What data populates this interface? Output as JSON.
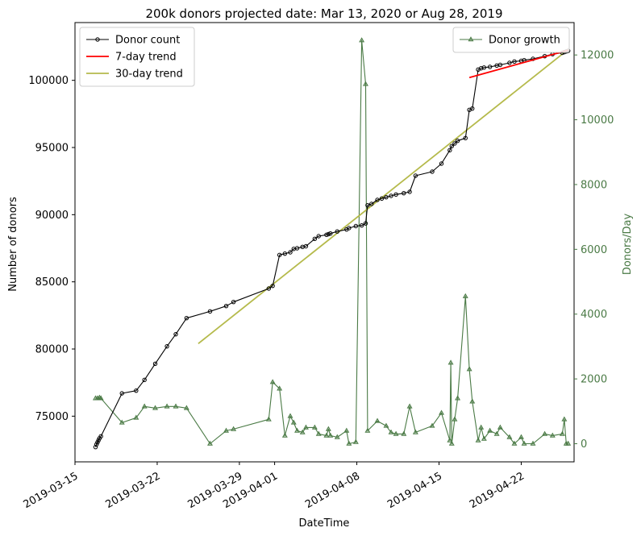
{
  "chart_data": {
    "type": "line",
    "title": "200k donors projected date: Mar 13, 2020 or Aug 28, 2019",
    "xlabel": "DateTime",
    "ylabel": "Number of donors",
    "y2label": "Donors/Day",
    "xlim": [
      "2019-03-15",
      "2019-04-26T12:00"
    ],
    "ylim": [
      71600,
      104300
    ],
    "y2lim": [
      -560,
      13000
    ],
    "x_ticks": [
      "2019-03-15",
      "2019-03-22",
      "2019-03-29",
      "2019-04-01",
      "2019-04-08",
      "2019-04-15",
      "2019-04-22"
    ],
    "y_ticks": [
      75000,
      80000,
      85000,
      90000,
      95000,
      100000
    ],
    "y2_ticks": [
      0,
      2000,
      4000,
      6000,
      8000,
      10000,
      12000
    ],
    "colors": {
      "donor_count": "#000000",
      "trend7": "#ff0000",
      "trend30": "#b5ba4b",
      "growth": "#4a7a45",
      "right_axis": "#4a7a45"
    },
    "legend_left": {
      "placement": "top-left",
      "items": [
        {
          "label": "Donor count",
          "series": "donor_count"
        },
        {
          "label": "7-day trend",
          "series": "trend7"
        },
        {
          "label": "30-day trend",
          "series": "trend30"
        }
      ]
    },
    "legend_right": {
      "placement": "top-right",
      "items": [
        {
          "label": "Donor growth",
          "series": "growth"
        }
      ]
    },
    "series": [
      {
        "name": "Donor count",
        "key": "donor_count",
        "axis": "left",
        "marker": "circle",
        "points": [
          [
            "2019-03-16T18:00",
            72700
          ],
          [
            "2019-03-16T20:00",
            72900
          ],
          [
            "2019-03-16T22:00",
            73050
          ],
          [
            "2019-03-17T00:00",
            73200
          ],
          [
            "2019-03-17T02:00",
            73350
          ],
          [
            "2019-03-17T05:00",
            73500
          ],
          [
            "2019-03-19T00:00",
            76700
          ],
          [
            "2019-03-20T05:00",
            76900
          ],
          [
            "2019-03-20T22:00",
            77700
          ],
          [
            "2019-03-21T20:00",
            78900
          ],
          [
            "2019-03-22T20:00",
            80200
          ],
          [
            "2019-03-23T14:00",
            81100
          ],
          [
            "2019-03-24T12:00",
            82300
          ],
          [
            "2019-03-26T12:00",
            82800
          ],
          [
            "2019-03-27T21:00",
            83200
          ],
          [
            "2019-03-28T12:00",
            83500
          ],
          [
            "2019-03-31T12:00",
            84500
          ],
          [
            "2019-03-31T20:00",
            84700
          ],
          [
            "2019-04-01T10:00",
            87000
          ],
          [
            "2019-04-01T21:00",
            87100
          ],
          [
            "2019-04-02T08:00",
            87200
          ],
          [
            "2019-04-02T15:00",
            87450
          ],
          [
            "2019-04-02T22:00",
            87500
          ],
          [
            "2019-04-03T09:00",
            87600
          ],
          [
            "2019-04-03T16:00",
            87650
          ],
          [
            "2019-04-04T10:00",
            88200
          ],
          [
            "2019-04-04T18:00",
            88400
          ],
          [
            "2019-04-05T10:00",
            88500
          ],
          [
            "2019-04-05T14:00",
            88550
          ],
          [
            "2019-04-05T18:00",
            88600
          ],
          [
            "2019-04-06T08:00",
            88750
          ],
          [
            "2019-04-07T03:00",
            88900
          ],
          [
            "2019-04-07T08:00",
            89000
          ],
          [
            "2019-04-07T22:00",
            89150
          ],
          [
            "2019-04-08T10:00",
            89200
          ],
          [
            "2019-04-08T18:00",
            89350
          ],
          [
            "2019-04-08T22:00",
            90700
          ],
          [
            "2019-04-09T06:00",
            90800
          ],
          [
            "2019-04-09T18:00",
            91100
          ],
          [
            "2019-04-10T03:00",
            91200
          ],
          [
            "2019-04-10T12:00",
            91300
          ],
          [
            "2019-04-10T22:00",
            91400
          ],
          [
            "2019-04-11T08:00",
            91500
          ],
          [
            "2019-04-12T00:00",
            91600
          ],
          [
            "2019-04-12T12:00",
            91700
          ],
          [
            "2019-04-13T00:00",
            92900
          ],
          [
            "2019-04-14T10:00",
            93200
          ],
          [
            "2019-04-15T05:00",
            93800
          ],
          [
            "2019-04-15T22:00",
            94800
          ],
          [
            "2019-04-16T02:00",
            95100
          ],
          [
            "2019-04-16T08:00",
            95300
          ],
          [
            "2019-04-16T14:00",
            95500
          ],
          [
            "2019-04-17T06:00",
            95700
          ],
          [
            "2019-04-17T14:00",
            97800
          ],
          [
            "2019-04-17T20:00",
            97900
          ],
          [
            "2019-04-18T08:00",
            100800
          ],
          [
            "2019-04-18T14:00",
            100900
          ],
          [
            "2019-04-18T20:00",
            100950
          ],
          [
            "2019-04-19T08:00",
            101000
          ],
          [
            "2019-04-19T22:00",
            101100
          ],
          [
            "2019-04-20T05:00",
            101150
          ],
          [
            "2019-04-21T00:00",
            101300
          ],
          [
            "2019-04-21T10:00",
            101400
          ],
          [
            "2019-04-22T00:00",
            101450
          ],
          [
            "2019-04-22T06:00",
            101500
          ],
          [
            "2019-04-23T00:00",
            101600
          ],
          [
            "2019-04-24T00:00",
            101800
          ],
          [
            "2019-04-24T16:00",
            101950
          ],
          [
            "2019-04-25T12:00",
            102050
          ],
          [
            "2019-04-25T16:00",
            102100
          ],
          [
            "2019-04-25T20:00",
            102150
          ],
          [
            "2019-04-26T00:00",
            102200
          ]
        ]
      },
      {
        "name": "7-day trend",
        "key": "trend7",
        "axis": "left",
        "points": [
          [
            "2019-04-17T14:00",
            100200
          ],
          [
            "2019-04-26T00:00",
            102250
          ]
        ]
      },
      {
        "name": "30-day trend",
        "key": "trend30",
        "axis": "left",
        "points": [
          [
            "2019-03-25T12:00",
            80400
          ],
          [
            "2019-04-26T00:00",
            102300
          ]
        ]
      },
      {
        "name": "Donor growth",
        "key": "growth",
        "axis": "right",
        "marker": "triangle",
        "points": [
          [
            "2019-03-16T18:00",
            1400
          ],
          [
            "2019-03-16T22:00",
            1400
          ],
          [
            "2019-03-17T02:00",
            1420
          ],
          [
            "2019-03-17T05:00",
            1400
          ],
          [
            "2019-03-19T00:00",
            650
          ],
          [
            "2019-03-20T05:00",
            800
          ],
          [
            "2019-03-20T22:00",
            1150
          ],
          [
            "2019-03-21T20:00",
            1100
          ],
          [
            "2019-03-22T20:00",
            1150
          ],
          [
            "2019-03-23T14:00",
            1150
          ],
          [
            "2019-03-24T12:00",
            1100
          ],
          [
            "2019-03-26T12:00",
            0
          ],
          [
            "2019-03-27T21:00",
            400
          ],
          [
            "2019-03-28T12:00",
            450
          ],
          [
            "2019-03-31T12:00",
            750
          ],
          [
            "2019-03-31T20:00",
            1900
          ],
          [
            "2019-04-01T10:00",
            1700
          ],
          [
            "2019-04-01T21:00",
            250
          ],
          [
            "2019-04-02T08:00",
            850
          ],
          [
            "2019-04-02T15:00",
            650
          ],
          [
            "2019-04-02T22:00",
            400
          ],
          [
            "2019-04-03T09:00",
            350
          ],
          [
            "2019-04-03T16:00",
            500
          ],
          [
            "2019-04-04T10:00",
            500
          ],
          [
            "2019-04-04T18:00",
            300
          ],
          [
            "2019-04-05T10:00",
            250
          ],
          [
            "2019-04-05T14:00",
            450
          ],
          [
            "2019-04-05T18:00",
            250
          ],
          [
            "2019-04-06T08:00",
            200
          ],
          [
            "2019-04-07T03:00",
            400
          ],
          [
            "2019-04-07T08:00",
            0
          ],
          [
            "2019-04-07T22:00",
            50
          ],
          [
            "2019-04-08T10:00",
            12450
          ],
          [
            "2019-04-08T18:00",
            11100
          ],
          [
            "2019-04-08T22:00",
            400
          ],
          [
            "2019-04-09T18:00",
            700
          ],
          [
            "2019-04-10T12:00",
            550
          ],
          [
            "2019-04-10T22:00",
            350
          ],
          [
            "2019-04-11T08:00",
            300
          ],
          [
            "2019-04-12T00:00",
            300
          ],
          [
            "2019-04-12T12:00",
            1150
          ],
          [
            "2019-04-13T00:00",
            350
          ],
          [
            "2019-04-14T10:00",
            550
          ],
          [
            "2019-04-15T05:00",
            950
          ],
          [
            "2019-04-15T22:00",
            100
          ],
          [
            "2019-04-16T00:00",
            2500
          ],
          [
            "2019-04-16T02:00",
            0
          ],
          [
            "2019-04-16T08:00",
            750
          ],
          [
            "2019-04-16T14:00",
            1400
          ],
          [
            "2019-04-17T06:00",
            4550
          ],
          [
            "2019-04-17T14:00",
            2300
          ],
          [
            "2019-04-17T20:00",
            1300
          ],
          [
            "2019-04-18T08:00",
            100
          ],
          [
            "2019-04-18T14:00",
            500
          ],
          [
            "2019-04-18T20:00",
            150
          ],
          [
            "2019-04-19T08:00",
            400
          ],
          [
            "2019-04-19T22:00",
            300
          ],
          [
            "2019-04-20T05:00",
            500
          ],
          [
            "2019-04-21T00:00",
            200
          ],
          [
            "2019-04-21T10:00",
            0
          ],
          [
            "2019-04-22T00:00",
            200
          ],
          [
            "2019-04-22T06:00",
            0
          ],
          [
            "2019-04-23T00:00",
            0
          ],
          [
            "2019-04-24T00:00",
            300
          ],
          [
            "2019-04-24T16:00",
            250
          ],
          [
            "2019-04-25T12:00",
            300
          ],
          [
            "2019-04-25T16:00",
            750
          ],
          [
            "2019-04-25T20:00",
            0
          ],
          [
            "2019-04-26T00:00",
            0
          ]
        ]
      }
    ]
  }
}
